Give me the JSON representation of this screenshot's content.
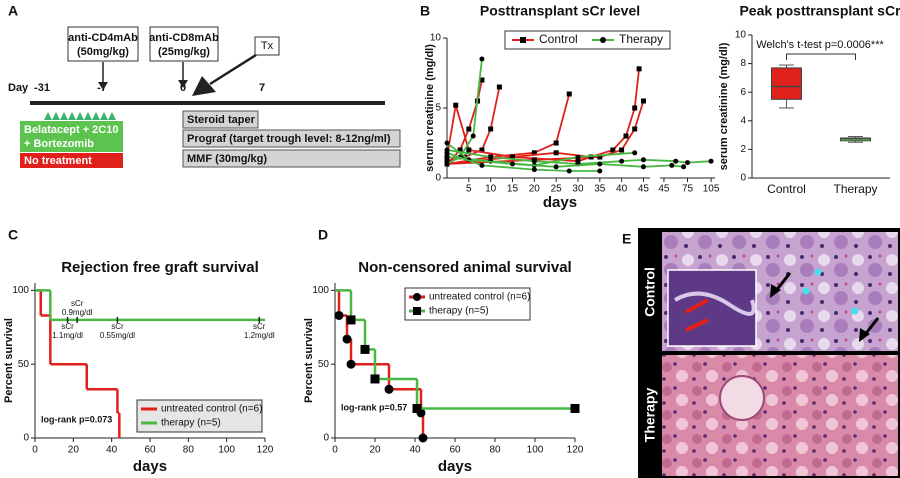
{
  "panel_labels": [
    "A",
    "B",
    "C",
    "D",
    "E"
  ],
  "timeline": {
    "day_label": "Day",
    "days": [
      "-31",
      "-7",
      "0",
      "7"
    ],
    "anti_cd4": [
      "anti-CD4mAb",
      "(50mg/kg)"
    ],
    "anti_cd8": [
      "anti-CD8mAb",
      "(25mg/kg)"
    ],
    "tx": "Tx",
    "treatment": [
      "Belatacept + 2C10",
      "+ Bortezomib"
    ],
    "no_treatment": "No treatment",
    "regimens": [
      "Steroid taper",
      "Prograf (target trough level: 8-12ng/ml)",
      "MMF (30mg/kg)"
    ]
  },
  "chart_data": [
    {
      "type": "line",
      "title": "Posttransplant sCr level",
      "x_label": "days",
      "y_label": "serum creatinine (mg/dl)",
      "ylim": [
        0,
        10
      ],
      "yticks": [
        0,
        5,
        10
      ],
      "x_segments": [
        {
          "xlim": [
            0,
            46.5
          ],
          "xticks": [
            5,
            10,
            15,
            20,
            25,
            30,
            35,
            40,
            45
          ]
        },
        {
          "xlim": [
            40,
            110
          ],
          "xticks": [
            45,
            75,
            105
          ]
        }
      ],
      "legend_loc": "upper center",
      "series": [
        {
          "name": "Control",
          "color": "#e0201b",
          "marker": "square",
          "marker_color": "#000",
          "animals": [
            {
              "x": [
                0,
                3,
                5,
                7,
                8
              ],
              "values": [
                1,
                2,
                3.5,
                5.5,
                7
              ]
            },
            {
              "x": [
                0,
                4,
                8,
                10,
                12
              ],
              "values": [
                1.2,
                1.5,
                2,
                3.5,
                6.5
              ]
            },
            {
              "x": [
                0,
                10,
                20,
                25,
                28
              ],
              "values": [
                1,
                1.5,
                1.8,
                2.5,
                6
              ]
            },
            {
              "x": [
                0,
                15,
                30,
                38,
                41,
                43,
                44
              ],
              "values": [
                1,
                1.5,
                1.2,
                2,
                3,
                5,
                7.8
              ]
            },
            {
              "x": [
                0,
                20,
                35,
                40,
                43,
                45
              ],
              "values": [
                1,
                1.3,
                1.5,
                2,
                3.5,
                5.5
              ]
            },
            {
              "x": [
                0,
                2,
                5,
                15,
                25,
                33
              ],
              "values": [
                1.5,
                5.2,
                2,
                1.5,
                1.8,
                1.5
              ]
            }
          ]
        },
        {
          "name": "Therapy",
          "color": "#49b843",
          "marker": "circle",
          "marker_color": "#000",
          "animals": [
            {
              "x": [
                0,
                3,
                6,
                8
              ],
              "values": [
                1,
                1.5,
                3,
                8.5
              ]
            },
            {
              "x": [
                0,
                10,
                20,
                30,
                40,
                45,
                60,
                75,
                105
              ],
              "values": [
                2,
                1.5,
                1.2,
                1,
                1.2,
                1.3,
                1.2,
                1.1,
                1.2
              ]
            },
            {
              "x": [
                0,
                10,
                20,
                30,
                43
              ],
              "values": [
                1.5,
                1.2,
                0.9,
                1.5,
                1.8
              ]
            },
            {
              "x": [
                0,
                5,
                15,
                25,
                35,
                45,
                55,
                70
              ],
              "values": [
                2.5,
                1.3,
                1,
                0.8,
                1,
                0.8,
                0.9,
                0.8
              ]
            },
            {
              "x": [
                0,
                8,
                20,
                28,
                35
              ],
              "values": [
                1.8,
                0.9,
                0.6,
                0.5,
                0.5
              ]
            }
          ]
        }
      ]
    },
    {
      "type": "box",
      "title": "Peak posttransplant sCr",
      "y_label": "serum creatinine (mg/dl)",
      "annotation": "Welch's t-test p=0.0006***",
      "ylim": [
        0,
        10
      ],
      "yticks": [
        0,
        2,
        4,
        6,
        8,
        10
      ],
      "categories": [
        "Control",
        "Therapy"
      ],
      "boxes": [
        {
          "min": 4.9,
          "q1": 5.5,
          "median": 6.4,
          "q3": 7.7,
          "max": 7.9,
          "color": "#e0201b"
        },
        {
          "min": 2.5,
          "q1": 2.6,
          "median": 2.75,
          "q3": 2.8,
          "max": 2.9,
          "color": "#6ccf4f"
        }
      ]
    },
    {
      "type": "step",
      "title": "Rejection free graft survival",
      "x_label": "days",
      "y_label": "Percent survival",
      "xlim": [
        0,
        120
      ],
      "xticks": [
        0,
        20,
        40,
        60,
        80,
        100,
        120
      ],
      "ylim": [
        0,
        105
      ],
      "yticks": [
        0,
        50,
        100
      ],
      "annotation": "log-rank p=0.073",
      "legend_loc": "lower right",
      "series": [
        {
          "name": "untreated control (n=6)",
          "color": "#e0201b",
          "x": [
            0,
            3,
            8,
            27,
            43,
            44
          ],
          "values": [
            100,
            83,
            50,
            33,
            17,
            0
          ]
        },
        {
          "name": "therapy (n=5)",
          "color": "#49b843",
          "x": [
            0,
            8,
            120
          ],
          "values": [
            100,
            80,
            80
          ],
          "censored_x": [
            17,
            22,
            43,
            117
          ],
          "censor_labels": [
            [
              "sCr",
              "1.1mg/dl"
            ],
            [
              "sCr",
              "0.9mg/dl"
            ],
            [
              "sCr",
              "0.55mg/dl"
            ],
            [
              "sCr",
              "1.2mg/dl"
            ]
          ]
        }
      ]
    },
    {
      "type": "step",
      "title": "Non-censored animal survival",
      "x_label": "days",
      "y_label": "Percent survival",
      "xlim": [
        0,
        120
      ],
      "xticks": [
        0,
        20,
        40,
        60,
        80,
        100,
        120
      ],
      "ylim": [
        0,
        105
      ],
      "yticks": [
        0,
        50,
        100
      ],
      "annotation": "log-rank p=0.57",
      "legend_loc": "upper right",
      "series": [
        {
          "name": "untreated control (n=6)",
          "color": "#e0201b",
          "marker": "circle",
          "marker_color": "#000",
          "x": [
            0,
            2,
            6,
            8,
            27,
            43,
            44
          ],
          "values": [
            100,
            83,
            67,
            50,
            33,
            17,
            0
          ]
        },
        {
          "name": "therapy (n=5)",
          "color": "#49b843",
          "marker": "square",
          "marker_color": "#000",
          "x": [
            0,
            8,
            15,
            20,
            41,
            120
          ],
          "values": [
            100,
            80,
            60,
            40,
            20,
            20
          ]
        }
      ]
    }
  ],
  "histology": {
    "labels": [
      "Control",
      "Therapy"
    ]
  }
}
